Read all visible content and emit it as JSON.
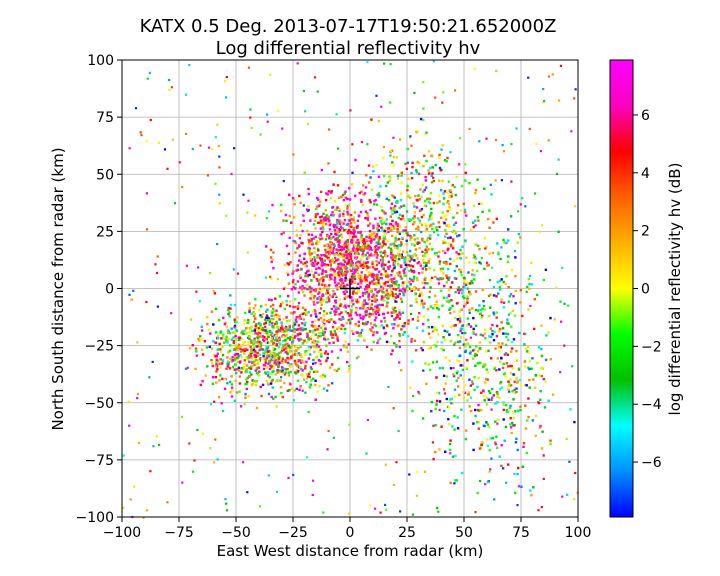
{
  "chart_data": {
    "type": "scatter",
    "title": "KATX 0.5 Deg. 2013-07-17T19:50:21.652000Z",
    "subtitle": "Log differential reflectivity hv",
    "xlabel": "East West distance from radar (km)",
    "ylabel": "North South distance from radar (km)",
    "xlim": [
      -100,
      100
    ],
    "ylim": [
      -100,
      100
    ],
    "xticks": [
      -100,
      -75,
      -50,
      -25,
      0,
      25,
      50,
      75,
      100
    ],
    "yticks": [
      -100,
      -75,
      -50,
      -25,
      0,
      25,
      50,
      75,
      100
    ],
    "grid": true,
    "radar_location": [
      0,
      0
    ],
    "colorbar": {
      "label": "log differential reflectivity hv (dB)",
      "range": [
        -7.9,
        7.9
      ],
      "ticks": [
        -6,
        -4,
        -2,
        0,
        2,
        4,
        6
      ],
      "colors": [
        "#0000ff",
        "#0090ff",
        "#00ffff",
        "#00c000",
        "#00ff00",
        "#ffff00",
        "#ffb000",
        "#ff6000",
        "#ff0000",
        "#ff00c0",
        "#ff00ff"
      ]
    },
    "echo_regions": [
      {
        "center": [
          0,
          10
        ],
        "spread": [
          14,
          16
        ],
        "density": 1.0,
        "mean_dB": 5
      },
      {
        "center": [
          -35,
          -25
        ],
        "spread": [
          14,
          10
        ],
        "density": 0.7,
        "mean_dB": 1
      },
      {
        "center": [
          30,
          20
        ],
        "spread": [
          14,
          22
        ],
        "density": 0.5,
        "mean_dB": 0
      },
      {
        "center": [
          60,
          -30
        ],
        "spread": [
          15,
          25
        ],
        "density": 0.4,
        "mean_dB": -1
      }
    ]
  }
}
